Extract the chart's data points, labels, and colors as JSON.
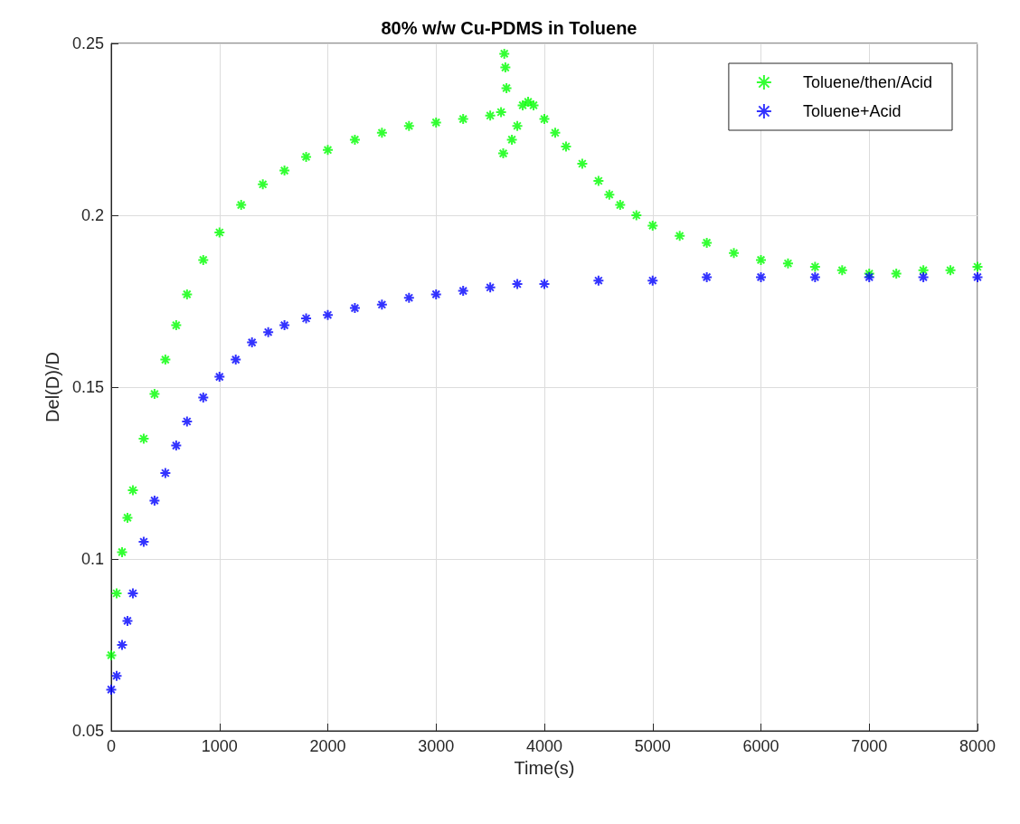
{
  "chart_data": {
    "type": "scatter",
    "title": "80% w/w Cu-PDMS in Toluene",
    "xlabel": "Time(s)",
    "ylabel": "Del(D)/D",
    "xlim": [
      0,
      8000
    ],
    "xticks": [
      0,
      1000,
      2000,
      3000,
      4000,
      5000,
      6000,
      7000,
      8000
    ],
    "ylim": [
      0.05,
      0.25
    ],
    "yticks": [
      0.05,
      0.1,
      0.15,
      0.2,
      0.25
    ],
    "grid": true,
    "legend": "top right",
    "marker": "cross",
    "series": [
      {
        "name": "Toluene/then/Acid",
        "color": "#00ff00",
        "x": [
          0,
          50,
          100,
          150,
          200,
          300,
          400,
          500,
          600,
          700,
          850,
          1000,
          1200,
          1400,
          1600,
          1800,
          2000,
          2250,
          2500,
          2750,
          3000,
          3250,
          3500,
          3600,
          3620,
          3630,
          3640,
          3650,
          3700,
          3750,
          3800,
          3850,
          3900,
          4000,
          4100,
          4200,
          4350,
          4500,
          4600,
          4700,
          4850,
          5000,
          5250,
          5500,
          5750,
          6000,
          6250,
          6500,
          6750,
          7000,
          7250,
          7500,
          7750,
          8000
        ],
        "values": [
          0.072,
          0.09,
          0.102,
          0.112,
          0.12,
          0.135,
          0.148,
          0.158,
          0.168,
          0.177,
          0.187,
          0.195,
          0.203,
          0.209,
          0.213,
          0.217,
          0.219,
          0.222,
          0.224,
          0.226,
          0.227,
          0.228,
          0.229,
          0.23,
          0.218,
          0.247,
          0.243,
          0.237,
          0.222,
          0.226,
          0.232,
          0.233,
          0.232,
          0.228,
          0.224,
          0.22,
          0.215,
          0.21,
          0.206,
          0.203,
          0.2,
          0.197,
          0.194,
          0.192,
          0.189,
          0.187,
          0.186,
          0.185,
          0.184,
          0.183,
          0.183,
          0.184,
          0.184,
          0.185
        ]
      },
      {
        "name": "Toluene+Acid",
        "color": "#0000ff",
        "x": [
          0,
          50,
          100,
          150,
          200,
          300,
          400,
          500,
          600,
          700,
          850,
          1000,
          1150,
          1300,
          1450,
          1600,
          1800,
          2000,
          2250,
          2500,
          2750,
          3000,
          3250,
          3500,
          3750,
          4000,
          4500,
          5000,
          5500,
          6000,
          6500,
          7000,
          7500,
          8000
        ],
        "values": [
          0.062,
          0.066,
          0.075,
          0.082,
          0.09,
          0.105,
          0.117,
          0.125,
          0.133,
          0.14,
          0.147,
          0.153,
          0.158,
          0.163,
          0.166,
          0.168,
          0.17,
          0.171,
          0.173,
          0.174,
          0.176,
          0.177,
          0.178,
          0.179,
          0.18,
          0.18,
          0.181,
          0.181,
          0.182,
          0.182,
          0.182,
          0.182,
          0.182,
          0.182
        ]
      }
    ]
  }
}
